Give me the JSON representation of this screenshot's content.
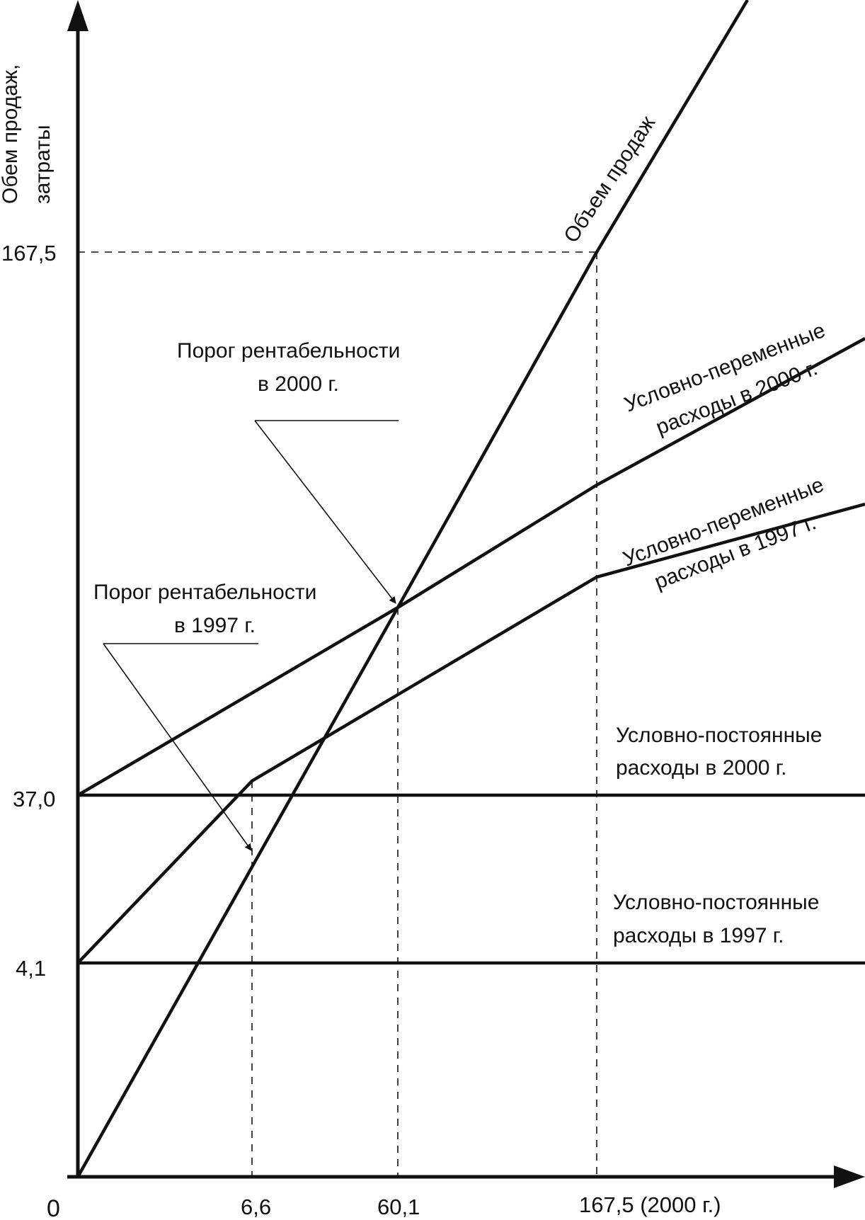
{
  "chart_data": {
    "type": "line",
    "title": "",
    "ylabel_lines": [
      "Обем продаж,",
      "затраты"
    ],
    "xlabel": "",
    "origin_label": "0",
    "y_ticks": [
      {
        "value": 4.1,
        "label": "4,1"
      },
      {
        "value": 37.0,
        "label": "37,0"
      },
      {
        "value": 167.5,
        "label": "167,5"
      }
    ],
    "x_ticks": [
      {
        "value": 6.6,
        "label": "6,6"
      },
      {
        "value": 60.1,
        "label": "60,1"
      },
      {
        "value": 167.5,
        "label": "167,5 (2000 г.)"
      }
    ],
    "series": [
      {
        "name": "Объем продаж",
        "points": [
          [
            0,
            0
          ],
          [
            60.1,
            105.7
          ],
          [
            167.5,
            167.5
          ]
        ]
      },
      {
        "name": "Условно-переменные расходы в 2000 г.",
        "points": [
          [
            0,
            37.0
          ],
          [
            60.1,
            105.7
          ],
          [
            167.5,
            127.0
          ]
        ]
      },
      {
        "name": "Условно-переменные расходы в 1997 г.",
        "points": [
          [
            0,
            4.1
          ],
          [
            6.6,
            42.2
          ],
          [
            167.5,
            111.0
          ]
        ]
      },
      {
        "name": "Условно-постоянные расходы в 2000 г.",
        "points": [
          [
            0,
            37.0
          ],
          [
            235,
            37.0
          ]
        ]
      },
      {
        "name": "Условно-постоянные расходы в 1997 г.",
        "points": [
          [
            0,
            4.1
          ],
          [
            235,
            4.1
          ]
        ]
      }
    ],
    "annotations": [
      {
        "label_lines": [
          "Порог рентабельности",
          "в 2000 г."
        ],
        "point": [
          60.1,
          105.7
        ]
      },
      {
        "label_lines": [
          "Порог рентабельности",
          "в 1997 г."
        ],
        "point": [
          6.6,
          42.2
        ]
      }
    ],
    "series_labels": {
      "sales": [
        "Объем продаж"
      ],
      "var2000": [
        "Условно-переменные",
        "расходы в 2000 г."
      ],
      "var1997": [
        "Условно-переменные",
        "расходы в 1997 г."
      ],
      "fix2000": [
        "Условно-постоянные",
        "расходы в 2000 г."
      ],
      "fix1997": [
        "Условно-постоянные",
        "расходы в 1997 г."
      ]
    },
    "grid": false,
    "legend": "none"
  }
}
